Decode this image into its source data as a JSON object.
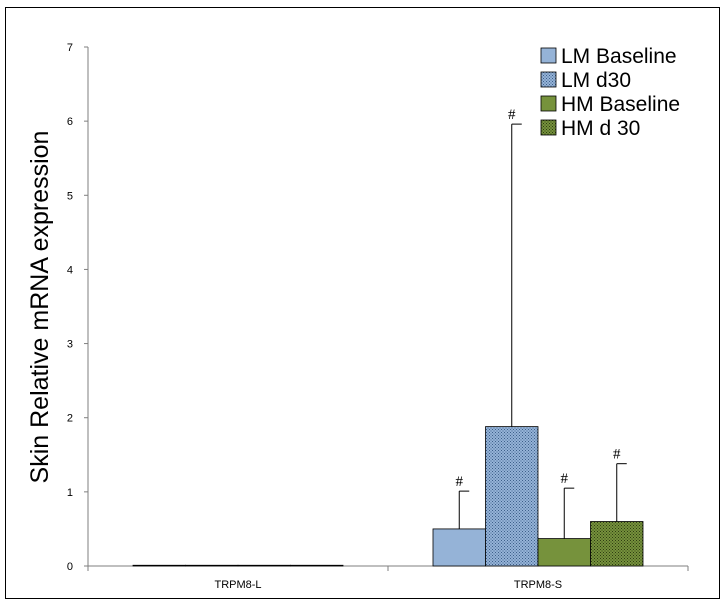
{
  "chart_data": {
    "type": "bar",
    "title": "",
    "xlabel": "",
    "ylabel": "Skin Relative mRNA expression",
    "ylim": [
      0,
      7
    ],
    "yticks": [
      0,
      1,
      2,
      3,
      4,
      5,
      6,
      7
    ],
    "categories": [
      "TRPM8-L",
      "TRPM8-S"
    ],
    "legend_position": "top-right",
    "grid": false,
    "series": [
      {
        "name": "LM Baseline",
        "color": "#95b3d7",
        "pattern": "solid",
        "values": [
          0.01,
          0.5
        ],
        "error_upper": [
          null,
          1.01
        ],
        "significance": [
          "",
          "#"
        ]
      },
      {
        "name": "LM d30",
        "color": "#95b3d7",
        "pattern": "dotted",
        "values": [
          0.01,
          1.88
        ],
        "error_upper": [
          null,
          5.96
        ],
        "significance": [
          "",
          "#"
        ]
      },
      {
        "name": "HM Baseline",
        "color": "#76923c",
        "pattern": "solid",
        "values": [
          0.01,
          0.37
        ],
        "error_upper": [
          null,
          1.05
        ],
        "significance": [
          "",
          "#"
        ]
      },
      {
        "name": "HM d 30",
        "color": "#76923c",
        "pattern": "dotted",
        "values": [
          0.01,
          0.6
        ],
        "error_upper": [
          null,
          1.38
        ],
        "significance": [
          "",
          "#"
        ]
      }
    ]
  }
}
